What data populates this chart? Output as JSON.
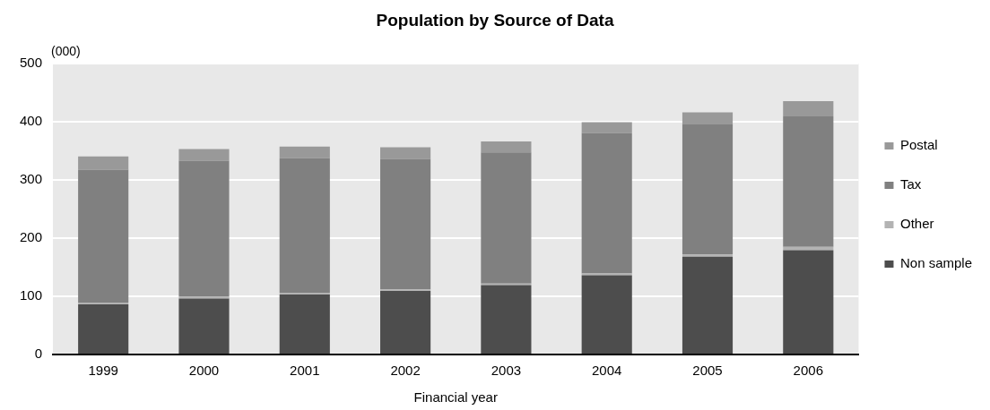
{
  "chart_data": {
    "type": "bar",
    "title": "Population by Source of Data",
    "xlabel": "Financial year",
    "ylabel": "(000)",
    "categories": [
      "1999",
      "2000",
      "2001",
      "2002",
      "2003",
      "2004",
      "2005",
      "2006"
    ],
    "series": [
      {
        "name": "Non sample",
        "color": "#4d4d4d",
        "values": [
          86,
          96,
          103,
          109,
          119,
          136,
          168,
          179
        ]
      },
      {
        "name": "Other",
        "color": "#b3b3b3",
        "values": [
          3,
          3,
          3,
          3,
          3,
          3,
          4,
          6
        ]
      },
      {
        "name": "Tax",
        "color": "#808080",
        "values": [
          228,
          234,
          231,
          224,
          225,
          241,
          223,
          224
        ]
      },
      {
        "name": "Postal",
        "color": "#999999",
        "values": [
          23,
          20,
          20,
          20,
          19,
          19,
          21,
          26
        ]
      }
    ],
    "stacked": true,
    "ylim": [
      0,
      500
    ],
    "yticks": [
      0,
      100,
      200,
      300,
      400,
      500
    ],
    "grid": "y",
    "legend": "right"
  }
}
